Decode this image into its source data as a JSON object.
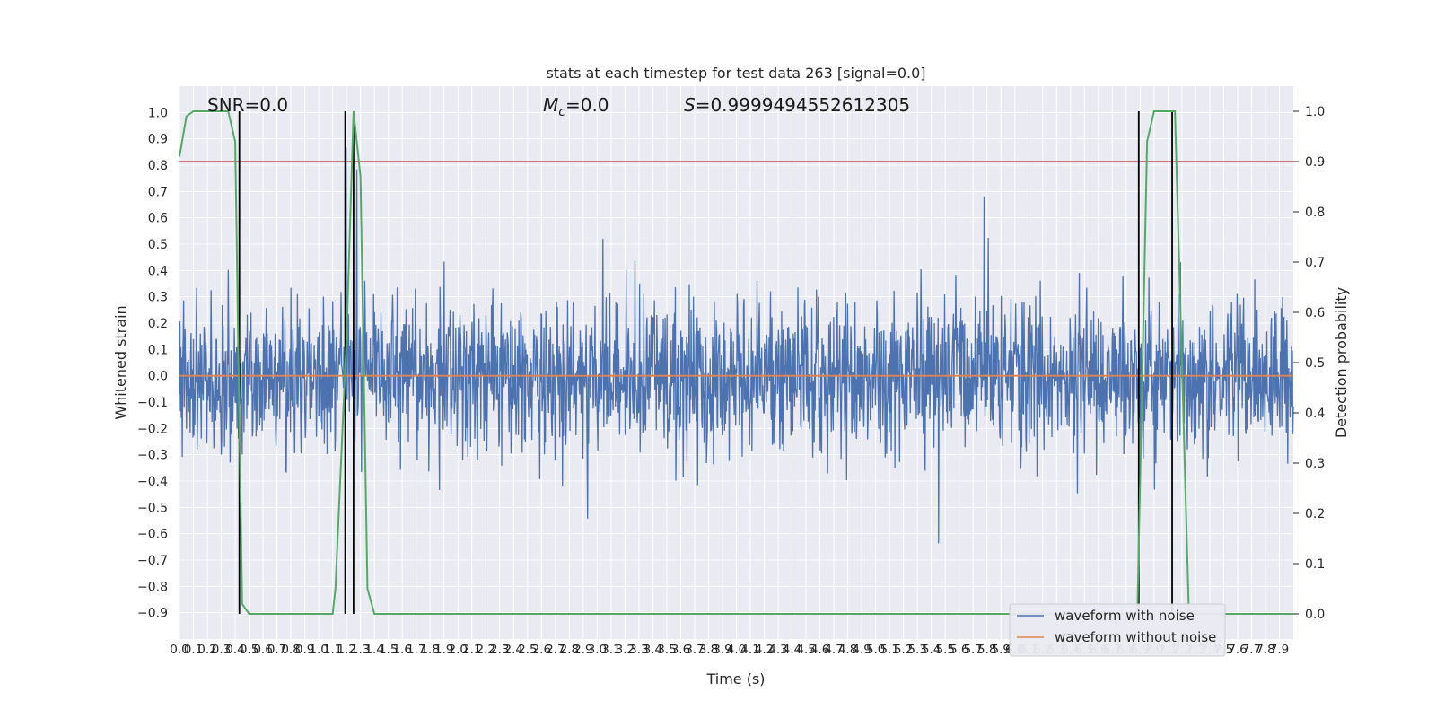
{
  "chart_data": {
    "type": "line",
    "title": "stats at each timestep for test data 263 [signal=0.0]",
    "xlabel": "Time (s)",
    "ylabel": "Whitened strain",
    "y2label": "Detection probability",
    "xlim": [
      0.0,
      8.0
    ],
    "ylim": [
      -1.0,
      1.1
    ],
    "y2lim": [
      -0.05,
      1.05
    ],
    "grid": true,
    "legend_position": "lower-right",
    "x_ticks": [
      "0.0",
      "0.1",
      "0.2",
      "0.3",
      "0.4",
      "0.5",
      "0.6",
      "0.7",
      "0.8",
      "0.9",
      "1.0",
      "1.1",
      "1.2",
      "1.3",
      "1.4",
      "1.5",
      "1.6",
      "1.7",
      "1.8",
      "1.9",
      "2.0",
      "2.1",
      "2.2",
      "2.3",
      "2.4",
      "2.5",
      "2.6",
      "2.7",
      "2.8",
      "2.9",
      "3.0",
      "3.1",
      "3.2",
      "3.3",
      "3.4",
      "3.5",
      "3.6",
      "3.7",
      "3.8",
      "3.9",
      "4.0",
      "4.1",
      "4.2",
      "4.3",
      "4.4",
      "4.5",
      "4.6",
      "4.7",
      "4.8",
      "4.9",
      "5.0",
      "5.1",
      "5.2",
      "5.3",
      "5.4",
      "5.5",
      "5.6",
      "5.7",
      "5.8",
      "5.9",
      "6.0",
      "6.1",
      "6.2",
      "6.3",
      "6.4",
      "6.5",
      "6.6",
      "6.7",
      "6.8",
      "6.9",
      "7.0",
      "7.1",
      "7.2",
      "7.3",
      "7.4",
      "7.5",
      "7.6",
      "7.7",
      "7.8",
      "7.9"
    ],
    "y_ticks": [
      "1.0",
      "0.9",
      "0.8",
      "0.7",
      "0.6",
      "0.5",
      "0.4",
      "0.3",
      "0.2",
      "0.1",
      "0.0",
      "−0.1",
      "−0.2",
      "−0.3",
      "−0.4",
      "−0.5",
      "−0.6",
      "−0.7",
      "−0.8",
      "−0.9"
    ],
    "y2_ticks": [
      "1.0",
      "0.9",
      "0.8",
      "0.7",
      "0.6",
      "0.5",
      "0.4",
      "0.3",
      "0.2",
      "0.1",
      "0.0"
    ],
    "annotations": {
      "snr": "SNR=0.0",
      "mc_symbol": "M",
      "mc_sub": "c",
      "mc_value": "=0.0",
      "s_symbol": "S",
      "s_value": "=0.9999494552612305"
    },
    "series": [
      {
        "name": "waveform with noise",
        "color": "#4c72b0",
        "kind": "noise",
        "amplitude_range": [
          -0.9,
          1.0
        ]
      },
      {
        "name": "waveform without noise",
        "color": "#dd8452",
        "kind": "flat",
        "value": 0.0
      },
      {
        "color": "#55a868",
        "axis": "right",
        "x": [
          0.0,
          0.05,
          0.1,
          0.2,
          0.3,
          0.35,
          0.4,
          0.45,
          0.5,
          0.6,
          0.8,
          1.0,
          1.1,
          1.12,
          1.2,
          1.25,
          1.3,
          1.35,
          1.4,
          1.45,
          2.0,
          4.0,
          6.0,
          6.8,
          6.88,
          6.95,
          7.0,
          7.05,
          7.15,
          7.2,
          7.25,
          7.3,
          7.5,
          7.9,
          8.0
        ],
        "y": [
          0.91,
          0.99,
          1.0,
          1.0,
          1.0,
          1.0,
          0.94,
          0.02,
          0.0,
          0.0,
          0.0,
          0.0,
          0.0,
          0.05,
          0.55,
          1.0,
          0.87,
          0.05,
          0.0,
          0.0,
          0.0,
          0.0,
          0.0,
          0.0,
          0.0,
          0.94,
          1.0,
          1.0,
          1.0,
          0.5,
          0.0,
          0.0,
          0.0,
          0.0,
          0.0
        ]
      },
      {
        "color": "#c44e52",
        "kind": "threshold",
        "axis": "right",
        "value": 0.9
      }
    ],
    "vertical_markers": [
      0.43,
      1.19,
      1.25,
      6.89,
      7.13
    ]
  },
  "legend": {
    "items": [
      {
        "label": "waveform with noise",
        "color": "#4c72b0"
      },
      {
        "label": "waveform without noise",
        "color": "#dd8452"
      }
    ]
  }
}
